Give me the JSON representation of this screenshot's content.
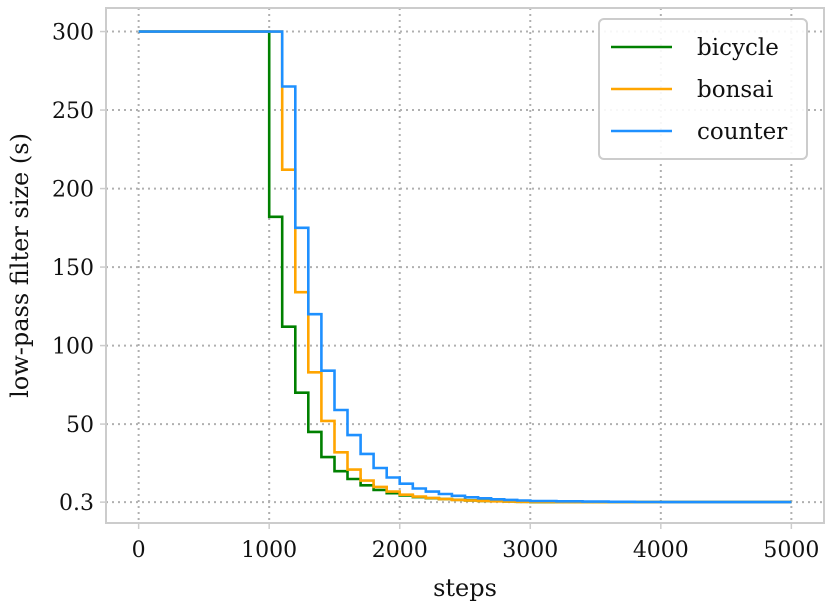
{
  "chart_data": {
    "type": "line",
    "title": "",
    "xlabel": "steps",
    "ylabel": "low-pass filter size (s)",
    "xlim": [
      -250,
      5250
    ],
    "ylim": [
      -13,
      315
    ],
    "x_ticks": [
      0,
      1000,
      2000,
      3000,
      4000,
      5000
    ],
    "x_tick_labels": [
      "0",
      "1000",
      "2000",
      "3000",
      "4000",
      "5000"
    ],
    "y_ticks": [
      0.3,
      50,
      100,
      150,
      200,
      250,
      300
    ],
    "y_tick_labels": [
      "0.3",
      "50",
      "100",
      "150",
      "200",
      "250",
      "300"
    ],
    "grid": true,
    "legend_position": "top-right",
    "colors": {
      "bicycle": "#008000",
      "bonsai": "#FFA500",
      "counter": "#1E90FF",
      "grid": "#b0b0b0",
      "frame": "#cccccc"
    },
    "series": [
      {
        "name": "bicycle",
        "x": [
          0,
          1000,
          1000,
          1100,
          1100,
          1200,
          1200,
          1300,
          1300,
          1400,
          1400,
          1500,
          1500,
          1600,
          1600,
          1700,
          1700,
          1800,
          1800,
          1900,
          1900,
          2000,
          2000,
          2100,
          2100,
          2200,
          2200,
          2300,
          2300,
          2400,
          2400,
          2500,
          2500,
          2600,
          2600,
          2700,
          2700,
          2800,
          2800,
          2900,
          2900,
          3000,
          3000,
          5000
        ],
        "y": [
          300,
          300,
          182,
          182,
          112,
          112,
          70,
          70,
          45,
          45,
          29,
          29,
          20,
          20,
          15,
          15,
          11,
          11,
          8,
          8,
          6,
          6,
          4.5,
          4.5,
          3.5,
          3.5,
          2.8,
          2.8,
          2.2,
          2.2,
          1.8,
          1.8,
          1.4,
          1.4,
          1.1,
          1.1,
          0.9,
          0.9,
          0.7,
          0.7,
          0.5,
          0.5,
          0.3,
          0.3
        ]
      },
      {
        "name": "bonsai",
        "x": [
          0,
          1100,
          1100,
          1200,
          1200,
          1300,
          1300,
          1400,
          1400,
          1500,
          1500,
          1600,
          1600,
          1700,
          1700,
          1800,
          1800,
          1900,
          1900,
          2000,
          2000,
          2100,
          2100,
          2200,
          2200,
          2300,
          2300,
          2400,
          2400,
          2500,
          2500,
          2600,
          2600,
          2700,
          2700,
          2800,
          2800,
          2900,
          2900,
          3000,
          3000,
          3100,
          3100,
          3200,
          3200,
          5000
        ],
        "y": [
          300,
          300,
          212,
          212,
          134,
          134,
          83,
          83,
          52,
          52,
          32,
          32,
          21,
          21,
          14,
          14,
          10,
          10,
          7,
          7,
          5,
          5,
          3.8,
          3.8,
          2.9,
          2.9,
          2.2,
          2.2,
          1.7,
          1.7,
          1.3,
          1.3,
          1.0,
          1.0,
          0.8,
          0.8,
          0.6,
          0.6,
          0.5,
          0.5,
          0.4,
          0.4,
          0.35,
          0.35,
          0.3,
          0.3
        ]
      },
      {
        "name": "counter",
        "x": [
          0,
          1100,
          1100,
          1200,
          1200,
          1300,
          1300,
          1400,
          1400,
          1500,
          1500,
          1600,
          1600,
          1700,
          1700,
          1800,
          1800,
          1900,
          1900,
          2000,
          2000,
          2100,
          2100,
          2200,
          2200,
          2300,
          2300,
          2400,
          2400,
          2500,
          2500,
          2600,
          2600,
          2700,
          2700,
          2800,
          2800,
          2900,
          2900,
          3000,
          3000,
          3200,
          3200,
          3400,
          3400,
          3600,
          3600,
          3800,
          3800,
          4000,
          4000,
          5000
        ],
        "y": [
          300,
          300,
          265,
          265,
          175,
          175,
          120,
          120,
          84,
          84,
          59,
          59,
          43,
          43,
          31,
          31,
          22,
          22,
          16,
          16,
          12,
          12,
          9,
          9,
          7,
          7,
          5.5,
          5.5,
          4.3,
          4.3,
          3.4,
          3.4,
          2.7,
          2.7,
          2.1,
          2.1,
          1.7,
          1.7,
          1.3,
          1.3,
          1.0,
          1.0,
          0.8,
          0.8,
          0.6,
          0.6,
          0.5,
          0.5,
          0.4,
          0.4,
          0.3,
          0.3
        ]
      }
    ]
  }
}
